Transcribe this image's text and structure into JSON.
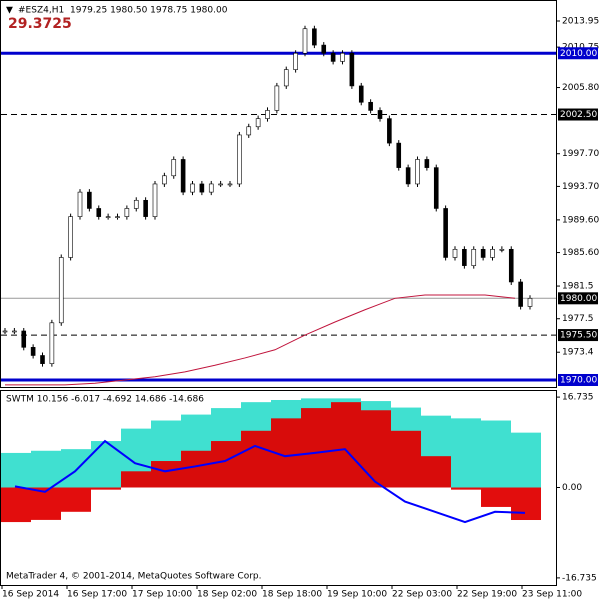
{
  "header": {
    "symbol": "#ESZ4,H1",
    "ohlc": "1979.25 1980.50 1978.75 1980.00",
    "value": "29.3725"
  },
  "price": {
    "ylim": [
      1969.02,
      2015.54
    ],
    "ticks": [
      2013.95,
      2010.75,
      {
        "value": 2005.8,
        "label": "2005.80"
      },
      {
        "value": 1997.7,
        "label": "1997.70"
      },
      {
        "value": 1993.7,
        "label": "1993.70"
      },
      {
        "value": 1989.6,
        "label": "1989.60"
      },
      {
        "value": 1985.6,
        "label": "1985.60"
      },
      1981.5,
      1977.5,
      1973.4
    ],
    "levels": [
      {
        "value": 2010,
        "label": "2010.00",
        "style": "solid"
      },
      {
        "value": 2002.5,
        "label": "2002.50",
        "style": "dashed"
      },
      {
        "value": 1980,
        "label": "1980.00",
        "style": "thin"
      },
      {
        "value": 1975.5,
        "label": "1975.50",
        "style": "dashed"
      },
      {
        "value": 1970,
        "label": "1970.00",
        "style": "solid"
      }
    ],
    "closes": [
      1976,
      1976,
      1974,
      1973,
      1972,
      1977,
      1985,
      1990,
      1993,
      1991,
      1990,
      1990,
      1990,
      1991,
      1992,
      1990,
      1994,
      1995,
      1997,
      1993,
      1994,
      1993,
      1994,
      1994,
      1994,
      2000,
      2001,
      2002,
      2003,
      2006,
      2008,
      2010,
      2013,
      2011,
      2010,
      2009,
      2010,
      2006,
      2004,
      2003,
      2002,
      1999,
      1996,
      1994,
      1997,
      1996,
      1991,
      1985,
      1986,
      1984,
      1986,
      1985,
      1986,
      1986,
      1982,
      1979,
      1980
    ],
    "ma": [
      1969.4,
      1969.4,
      1969.4,
      1969.6,
      1970,
      1970.4,
      1971,
      1971.8,
      1972.7,
      1973.7,
      1975.5,
      1977.1,
      1978.6,
      1980,
      1980.4,
      1980.4,
      1980.4,
      1980
    ]
  },
  "oscillator": {
    "label": "SWTM 10.156 -6.017 -4.692 14.686 -14.686",
    "ylim": [
      -18.05,
      18.05
    ],
    "ticks": [
      16.735,
      {
        "value": 0,
        "label": "0.00"
      },
      -16.735
    ],
    "cyan": [
      6.4,
      6.8,
      7.1,
      8.6,
      10.9,
      12.4,
      13.5,
      14.7,
      15.8,
      16.2,
      16.5,
      16.5,
      16,
      14.8,
      13.3,
      12.8,
      12.4,
      10.156
    ],
    "red": [
      -6.4,
      -6,
      -4.5,
      -0.4,
      3,
      4.9,
      6.8,
      8.6,
      10.5,
      12.8,
      14.7,
      15.8,
      14.3,
      10.5,
      5.8,
      -0.4,
      -3.6,
      -6.017
    ],
    "blue": [
      0.2,
      -0.8,
      3,
      8.6,
      4.5,
      3,
      3.9,
      4.9,
      7.7,
      5.8,
      6.4,
      7.1,
      1.1,
      -2.6,
      -4.5,
      -6.4,
      -4.5,
      -4.692
    ]
  },
  "time_axis": [
    "16 Sep 2014",
    "16 Sep 17:00",
    "17 Sep 10:00",
    "18 Sep 02:00",
    "18 Sep 18:00",
    "19 Sep 10:00",
    "22 Sep 03:00",
    "22 Sep 19:00",
    "23 Sep 11:00"
  ],
  "footer": "MetaTrader 4, © 2001-2014, MetaQuotes Software Corp."
}
